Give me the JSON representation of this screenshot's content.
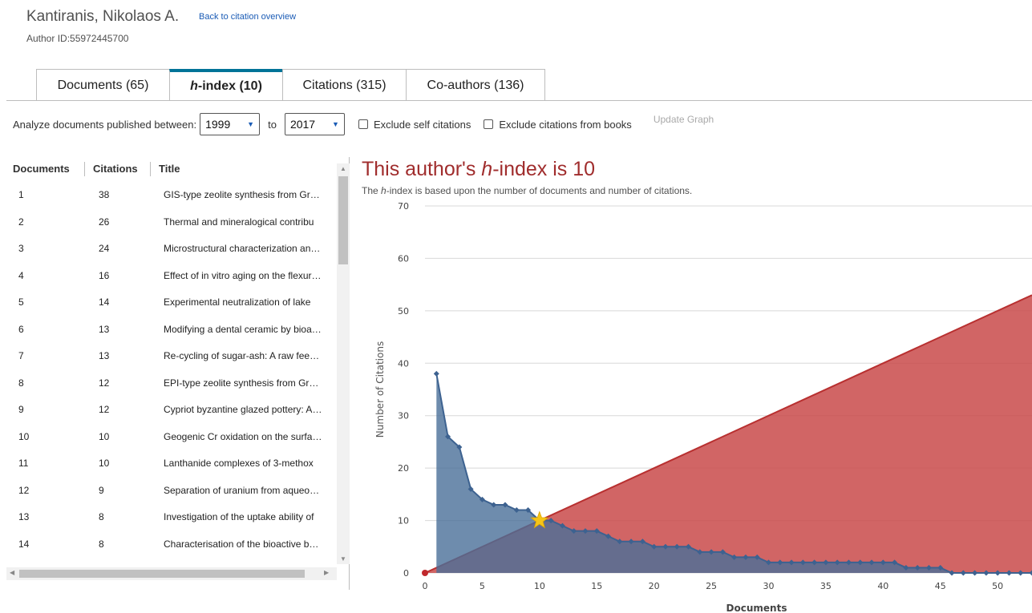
{
  "header": {
    "author_name": "Kantiranis, Nikolaos A.",
    "back_link": "Back to citation overview",
    "author_id": "Author ID:55972445700"
  },
  "tabs": [
    {
      "label": "Documents (65)",
      "active": false
    },
    {
      "label_italic": "h",
      "label_rest": "-index (10)",
      "active": true
    },
    {
      "label": "Citations (315)",
      "active": false
    },
    {
      "label": "Co-authors (136)",
      "active": false
    }
  ],
  "filters": {
    "analyze_label": "Analyze documents published between:",
    "from_year": "1999",
    "to_label": "to",
    "to_year": "2017",
    "exclude_self": "Exclude self citations",
    "exclude_books": "Exclude citations from books",
    "update_button": "Update Graph"
  },
  "table": {
    "columns": [
      "Documents",
      "Citations",
      "Title"
    ],
    "rows": [
      {
        "doc": "1",
        "cit": "38",
        "title": "GIS-type zeolite synthesis from Gr…"
      },
      {
        "doc": "2",
        "cit": "26",
        "title": "Thermal and mineralogical contribu"
      },
      {
        "doc": "3",
        "cit": "24",
        "title": "Microstructural characterization an…"
      },
      {
        "doc": "4",
        "cit": "16",
        "title": "Effect of in vitro aging on the flexur…"
      },
      {
        "doc": "5",
        "cit": "14",
        "title": "Experimental neutralization of lake"
      },
      {
        "doc": "6",
        "cit": "13",
        "title": "Modifying a dental ceramic by bioa…"
      },
      {
        "doc": "7",
        "cit": "13",
        "title": "Re-cycling of sugar-ash: A raw fee…"
      },
      {
        "doc": "8",
        "cit": "12",
        "title": "EPI-type zeolite synthesis from Gr…"
      },
      {
        "doc": "9",
        "cit": "12",
        "title": "Cypriot byzantine glazed pottery: A…"
      },
      {
        "doc": "10",
        "cit": "10",
        "title": "Geogenic Cr oxidation on the surfa…"
      },
      {
        "doc": "11",
        "cit": "10",
        "title": "Lanthanide complexes of 3-methox"
      },
      {
        "doc": "12",
        "cit": "9",
        "title": "Separation of uranium from aqueo…"
      },
      {
        "doc": "13",
        "cit": "8",
        "title": "Investigation of the uptake ability of"
      },
      {
        "doc": "14",
        "cit": "8",
        "title": "Characterisation of the bioactive b…"
      }
    ]
  },
  "chart_heading": {
    "prefix": "This author's ",
    "italic": "h",
    "suffix": "-index is 10",
    "sub_prefix": "The ",
    "sub_italic": "h",
    "sub_suffix": "-index is based upon the number of documents and number of citations."
  },
  "chart_data": {
    "type": "area",
    "xlabel": "Documents",
    "ylabel": "Number of Citations",
    "xlim": [
      0,
      53
    ],
    "ylim": [
      0,
      70
    ],
    "x_ticks": [
      0,
      5,
      10,
      15,
      20,
      25,
      30,
      35,
      40,
      45,
      50
    ],
    "y_ticks": [
      0,
      10,
      20,
      30,
      40,
      50,
      60,
      70
    ],
    "grid": true,
    "h_index": 10,
    "h_index_point": [
      10,
      10
    ],
    "series": [
      {
        "color": "#4a6f99",
        "x": [
          1,
          2,
          3,
          4,
          5,
          6,
          7,
          8,
          9,
          10,
          11,
          12,
          13,
          14,
          15,
          16,
          17,
          18,
          19,
          20,
          21,
          22,
          23,
          24,
          25,
          26,
          27,
          28,
          29,
          30,
          31,
          32,
          33,
          34,
          35,
          36,
          37,
          38,
          39,
          40,
          41,
          42,
          43,
          44,
          45,
          46,
          47,
          48,
          49,
          50,
          51,
          52,
          53
        ],
        "values": [
          38,
          26,
          24,
          16,
          14,
          13,
          13,
          12,
          12,
          10,
          10,
          9,
          8,
          8,
          8,
          7,
          6,
          6,
          6,
          5,
          5,
          5,
          5,
          4,
          4,
          4,
          3,
          3,
          3,
          2,
          2,
          2,
          2,
          2,
          2,
          2,
          2,
          2,
          2,
          2,
          2,
          1,
          1,
          1,
          1,
          0,
          0,
          0,
          0,
          0,
          0,
          0,
          0
        ]
      },
      {
        "color": "#c94a4a",
        "x": [
          0,
          53
        ],
        "values": [
          0,
          53
        ]
      }
    ]
  }
}
